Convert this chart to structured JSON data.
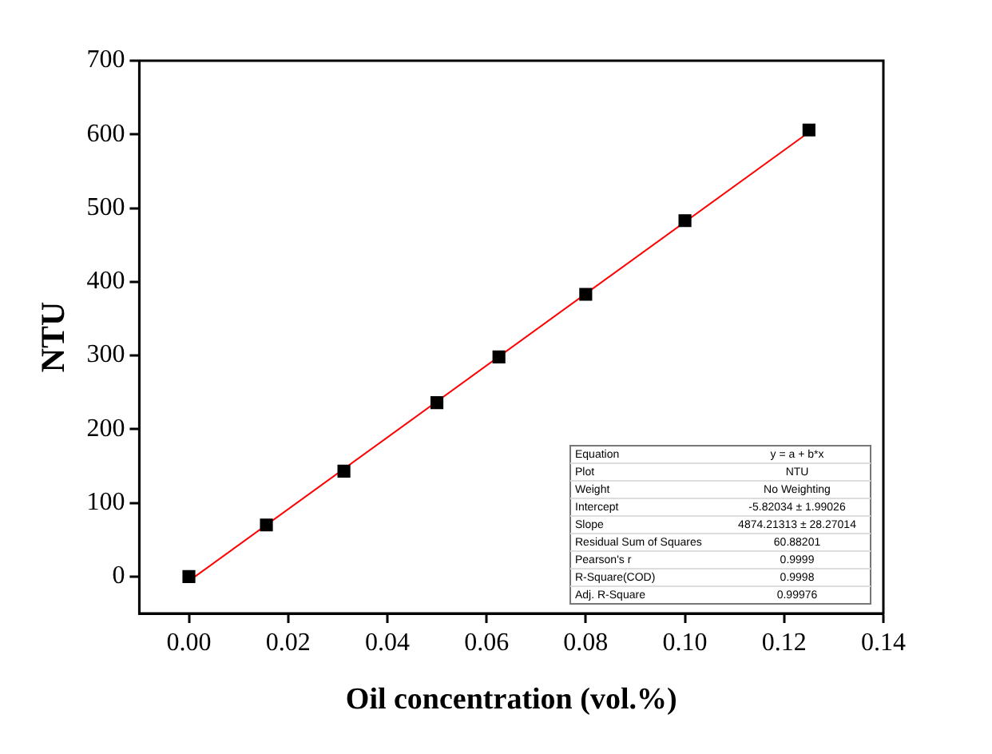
{
  "chart_data": {
    "type": "scatter",
    "xlabel": "Oil concentration (vol.%)",
    "ylabel": "NTU",
    "xlim": [
      -0.01,
      0.14
    ],
    "ylim": [
      -50,
      700
    ],
    "xticks": [
      {
        "value": 0,
        "label": "0.00"
      },
      {
        "value": 0.02,
        "label": "0.02"
      },
      {
        "value": 0.04,
        "label": "0.04"
      },
      {
        "value": 0.06,
        "label": "0.06"
      },
      {
        "value": 0.08,
        "label": "0.08"
      },
      {
        "value": 0.1,
        "label": "0.10"
      },
      {
        "value": 0.12,
        "label": "0.12"
      },
      {
        "value": 0.14,
        "label": "0.14"
      }
    ],
    "yticks": [
      0,
      100,
      200,
      300,
      400,
      500,
      600,
      700
    ],
    "grid": false,
    "legend": false,
    "series": [
      {
        "marker": "square",
        "color": "#000000",
        "x": [
          0,
          0.015625,
          0.03125,
          0.05,
          0.0625,
          0.08,
          0.1,
          0.125
        ],
        "values": [
          0,
          70,
          143,
          236,
          298,
          383,
          483,
          606
        ]
      },
      {
        "type": "line",
        "color": "#ff0000",
        "x": [
          0,
          0.125
        ],
        "values": [
          -6,
          603
        ]
      }
    ],
    "annotations": [
      "Equation",
      "y = a + b*x",
      "Plot",
      "NTU",
      "Weight",
      "No Weighting",
      "Intercept",
      "-5.82034 ± 1.99026",
      "Slope",
      "4874.21313 ± 28.27014",
      "Residual Sum of Squares",
      "60.88201",
      "Pearson's r",
      "0.9999",
      "R-Square(COD)",
      "0.9998",
      "Adj. R-Square",
      "0.99976"
    ]
  }
}
